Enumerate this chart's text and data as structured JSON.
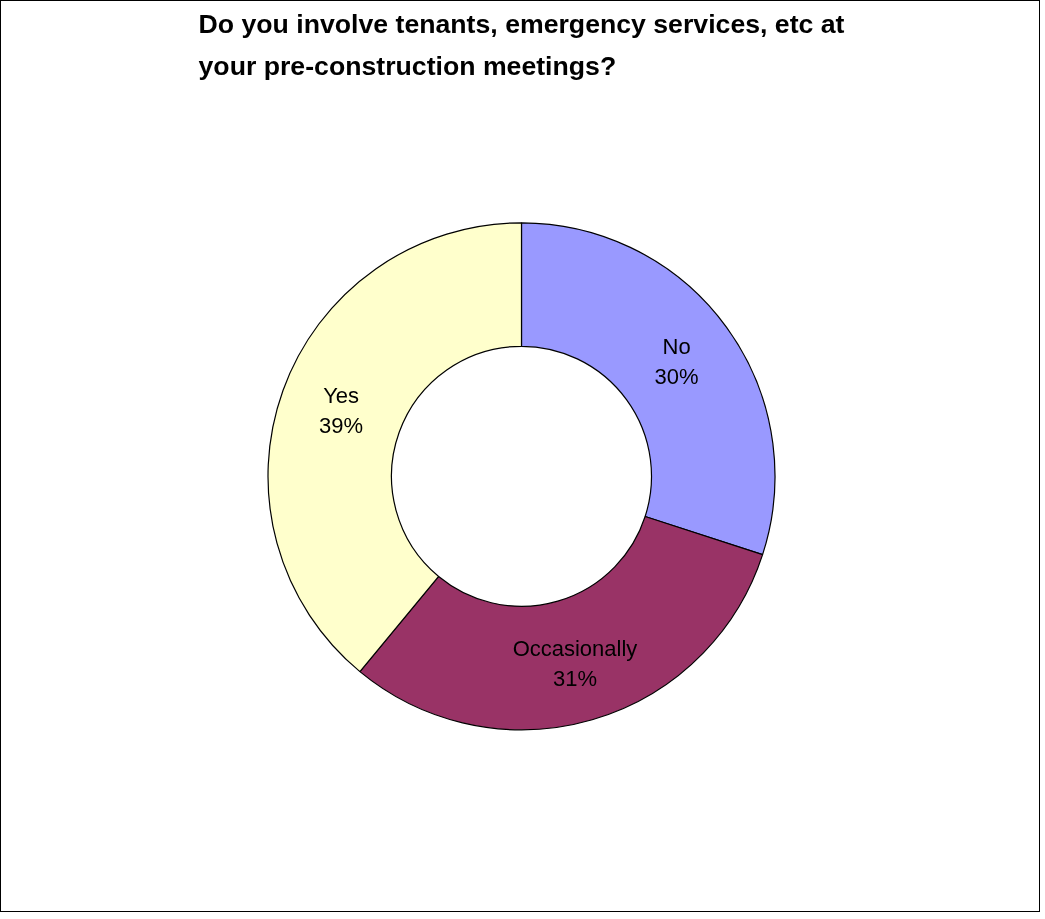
{
  "chart_data": {
    "type": "donut",
    "title": "Do you involve tenants, emergency services, etc at your pre-construction meetings?",
    "categories": [
      "No",
      "Occasionally",
      "Yes"
    ],
    "values": [
      30,
      31,
      39
    ],
    "value_labels": [
      "30%",
      "31%",
      "39%"
    ],
    "colors": [
      "#9999ff",
      "#993366",
      "#ffffcc"
    ]
  }
}
